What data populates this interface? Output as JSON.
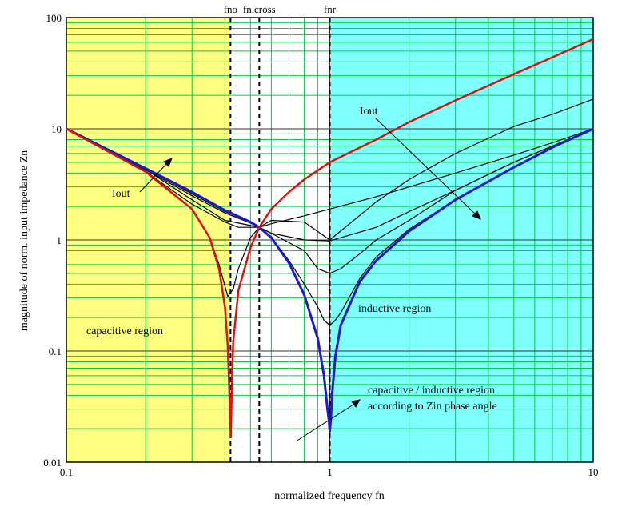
{
  "chart_data": {
    "type": "line",
    "xlabel": "normalized frequency fn",
    "ylabel": "magnitude of norm. input impedance Zn",
    "xscale": "log",
    "yscale": "log",
    "xlim": [
      0.1,
      10
    ],
    "ylim": [
      0.01,
      100
    ],
    "x_tick_labels": [
      "0.1",
      "1",
      "10"
    ],
    "y_tick_labels": [
      "100",
      "10",
      "1",
      "0.1",
      "0.01"
    ],
    "grid": true,
    "colors": {
      "capacitive_bg": "#ffff80",
      "inductive_bg": "#80ffff",
      "grid": "#00cc44",
      "major_grid": "#333333",
      "open_circuit_curve": "#dd1111",
      "short_circuit_curve": "#1a1acc",
      "load_curve": "#000000"
    },
    "markers": [
      {
        "label": "fno",
        "x": 0.42
      },
      {
        "label": "fn.cross",
        "x": 0.54
      },
      {
        "label": "fnr",
        "x": 1.0
      }
    ],
    "region_labels": {
      "capacitive": "capacitive region",
      "inductive": "inductive region",
      "mixed_line1": "capacitive / inductive region",
      "mixed_line2": "according to Zin phase angle"
    },
    "annotations": [
      "Iout",
      "Iout"
    ],
    "series": [
      {
        "color": "red",
        "x": [
          0.1,
          0.2,
          0.3,
          0.35,
          0.38,
          0.4,
          0.41,
          0.415,
          0.418,
          0.421,
          0.425,
          0.43,
          0.45,
          0.5,
          0.54,
          0.6,
          0.7,
          0.8,
          1,
          1.5,
          2,
          3,
          5,
          7,
          10
        ],
        "y": [
          10,
          4.1,
          1.9,
          1.05,
          0.55,
          0.25,
          0.11,
          0.05,
          0.025,
          0.017,
          0.05,
          0.12,
          0.35,
          0.85,
          1.3,
          1.9,
          2.7,
          3.5,
          5,
          8,
          11.5,
          18,
          31,
          44,
          64
        ]
      },
      {
        "color": "blue",
        "x": [
          0.1,
          0.2,
          0.3,
          0.4,
          0.5,
          0.54,
          0.6,
          0.7,
          0.8,
          0.9,
          0.95,
          0.98,
          0.99,
          1.0,
          1.01,
          1.02,
          1.05,
          1.1,
          1.3,
          1.5,
          2,
          3,
          5,
          7,
          10
        ],
        "y": [
          10,
          4.4,
          2.7,
          1.85,
          1.45,
          1.3,
          1.05,
          0.62,
          0.32,
          0.13,
          0.06,
          0.03,
          0.025,
          0.019,
          0.025,
          0.04,
          0.09,
          0.17,
          0.42,
          0.65,
          1.2,
          2.3,
          4.5,
          6.8,
          10
        ]
      },
      {
        "color": "black",
        "x": [
          0.1,
          0.2,
          0.3,
          0.35,
          0.38,
          0.41,
          0.43,
          0.45,
          0.5,
          0.54,
          0.6,
          0.8,
          1,
          1.5,
          2,
          3,
          5,
          7,
          10
        ],
        "y": [
          10,
          4.2,
          1.9,
          1.05,
          0.6,
          0.31,
          0.36,
          0.55,
          1.05,
          1.3,
          1.5,
          1.45,
          1.0,
          2.2,
          3.5,
          6,
          10.5,
          13.5,
          18.5
        ]
      },
      {
        "color": "black",
        "x": [
          0.1,
          0.2,
          0.3,
          0.4,
          0.5,
          0.54,
          0.6,
          0.8,
          0.9,
          1,
          1.1,
          1.3,
          1.5,
          2,
          3,
          5,
          7,
          10
        ],
        "y": [
          10,
          4.3,
          2.3,
          1.5,
          1.35,
          1.3,
          1.15,
          0.8,
          0.55,
          0.5,
          0.55,
          0.75,
          1.0,
          1.5,
          2.8,
          5,
          7,
          10
        ]
      },
      {
        "color": "black",
        "x": [
          0.1,
          0.2,
          0.3,
          0.4,
          0.5,
          0.54,
          0.6,
          0.7,
          0.8,
          0.9,
          0.95,
          1.0,
          1.05,
          1.1,
          1.3,
          1.5,
          2,
          3,
          5,
          7,
          10
        ],
        "y": [
          10,
          4.4,
          2.6,
          1.8,
          1.45,
          1.3,
          1.05,
          0.65,
          0.4,
          0.25,
          0.19,
          0.17,
          0.19,
          0.22,
          0.45,
          0.7,
          1.25,
          2.3,
          4.5,
          6.8,
          10
        ]
      },
      {
        "color": "black",
        "x": [
          0.1,
          0.2,
          0.3,
          0.4,
          0.5,
          0.54,
          0.6,
          0.8,
          1,
          1.5,
          2,
          3,
          5,
          7,
          10
        ],
        "y": [
          10,
          4.3,
          2.5,
          1.75,
          1.42,
          1.3,
          1.15,
          1.0,
          0.98,
          1.3,
          1.8,
          2.8,
          5,
          7,
          10
        ]
      },
      {
        "color": "black",
        "x": [
          0.1,
          0.2,
          0.3,
          0.4,
          0.45,
          0.5,
          0.54,
          0.6,
          0.8,
          1,
          1.5,
          2,
          3,
          5,
          7,
          10
        ],
        "y": [
          10,
          4.1,
          2.1,
          1.45,
          1.3,
          1.3,
          1.3,
          1.4,
          1.65,
          1.9,
          2.45,
          3,
          4,
          5.8,
          7.5,
          10
        ]
      }
    ]
  }
}
